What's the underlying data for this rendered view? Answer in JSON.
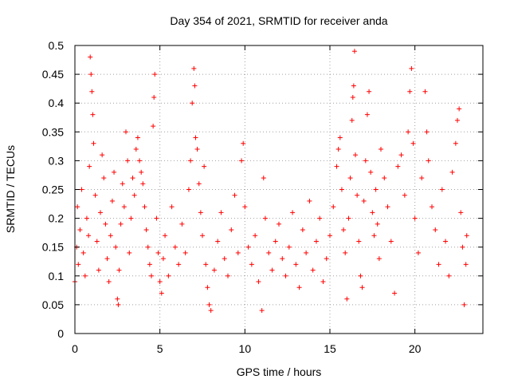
{
  "chart_data": {
    "type": "scatter",
    "title": "Day 354 of 2021, SRMTID for receiver anda",
    "xlabel": "GPS time / hours",
    "ylabel": "SRMTID / TECUs",
    "xlim": [
      0,
      24
    ],
    "ylim": [
      0,
      0.5
    ],
    "x_ticks": [
      0,
      5,
      10,
      15,
      20
    ],
    "y_ticks": [
      0,
      0.05,
      0.1,
      0.15,
      0.2,
      0.25,
      0.3,
      0.35,
      0.4,
      0.45,
      0.5
    ],
    "x_tick_labels": [
      "0",
      "5",
      "10",
      "15",
      "20"
    ],
    "y_tick_labels": [
      "0",
      "0.05",
      "0.1",
      "0.15",
      "0.2",
      "0.25",
      "0.3",
      "0.35",
      "0.4",
      "0.45",
      "0.5"
    ],
    "grid": true,
    "marker": "+",
    "color": "#ff0000",
    "series": [
      {
        "name": "SRMTID",
        "points": [
          [
            0.0,
            0.09
          ],
          [
            0.1,
            0.15
          ],
          [
            0.15,
            0.22
          ],
          [
            0.2,
            0.12
          ],
          [
            0.3,
            0.18
          ],
          [
            0.4,
            0.25
          ],
          [
            0.5,
            0.14
          ],
          [
            0.6,
            0.1
          ],
          [
            0.7,
            0.2
          ],
          [
            0.8,
            0.17
          ],
          [
            0.85,
            0.29
          ],
          [
            0.9,
            0.48
          ],
          [
            0.95,
            0.45
          ],
          [
            1.0,
            0.42
          ],
          [
            1.05,
            0.38
          ],
          [
            1.1,
            0.33
          ],
          [
            1.2,
            0.24
          ],
          [
            1.3,
            0.16
          ],
          [
            1.4,
            0.11
          ],
          [
            1.5,
            0.21
          ],
          [
            1.6,
            0.31
          ],
          [
            1.7,
            0.27
          ],
          [
            1.8,
            0.19
          ],
          [
            1.9,
            0.13
          ],
          [
            2.0,
            0.09
          ],
          [
            2.1,
            0.17
          ],
          [
            2.2,
            0.23
          ],
          [
            2.3,
            0.28
          ],
          [
            2.4,
            0.15
          ],
          [
            2.5,
            0.06
          ],
          [
            2.55,
            0.05
          ],
          [
            2.6,
            0.11
          ],
          [
            2.7,
            0.19
          ],
          [
            2.8,
            0.26
          ],
          [
            2.9,
            0.22
          ],
          [
            3.0,
            0.35
          ],
          [
            3.1,
            0.3
          ],
          [
            3.2,
            0.14
          ],
          [
            3.3,
            0.2
          ],
          [
            3.4,
            0.27
          ],
          [
            3.5,
            0.24
          ],
          [
            3.6,
            0.32
          ],
          [
            3.7,
            0.34
          ],
          [
            3.8,
            0.3
          ],
          [
            3.9,
            0.28
          ],
          [
            4.0,
            0.26
          ],
          [
            4.1,
            0.22
          ],
          [
            4.2,
            0.18
          ],
          [
            4.3,
            0.15
          ],
          [
            4.4,
            0.12
          ],
          [
            4.5,
            0.1
          ],
          [
            4.6,
            0.36
          ],
          [
            4.65,
            0.41
          ],
          [
            4.7,
            0.45
          ],
          [
            4.8,
            0.2
          ],
          [
            4.9,
            0.14
          ],
          [
            5.0,
            0.09
          ],
          [
            5.1,
            0.07
          ],
          [
            5.2,
            0.13
          ],
          [
            5.3,
            0.17
          ],
          [
            5.5,
            0.1
          ],
          [
            5.7,
            0.22
          ],
          [
            5.9,
            0.15
          ],
          [
            6.1,
            0.12
          ],
          [
            6.3,
            0.19
          ],
          [
            6.5,
            0.14
          ],
          [
            6.7,
            0.25
          ],
          [
            6.8,
            0.3
          ],
          [
            6.9,
            0.4
          ],
          [
            7.0,
            0.46
          ],
          [
            7.05,
            0.43
          ],
          [
            7.1,
            0.34
          ],
          [
            7.2,
            0.32
          ],
          [
            7.3,
            0.26
          ],
          [
            7.4,
            0.21
          ],
          [
            7.5,
            0.17
          ],
          [
            7.6,
            0.29
          ],
          [
            7.7,
            0.12
          ],
          [
            7.8,
            0.08
          ],
          [
            7.9,
            0.05
          ],
          [
            8.0,
            0.04
          ],
          [
            8.2,
            0.11
          ],
          [
            8.4,
            0.16
          ],
          [
            8.6,
            0.21
          ],
          [
            8.8,
            0.13
          ],
          [
            9.0,
            0.1
          ],
          [
            9.2,
            0.18
          ],
          [
            9.4,
            0.24
          ],
          [
            9.6,
            0.14
          ],
          [
            9.8,
            0.3
          ],
          [
            9.9,
            0.33
          ],
          [
            10.0,
            0.22
          ],
          [
            10.2,
            0.15
          ],
          [
            10.4,
            0.12
          ],
          [
            10.6,
            0.17
          ],
          [
            10.8,
            0.09
          ],
          [
            11.0,
            0.04
          ],
          [
            11.1,
            0.27
          ],
          [
            11.2,
            0.2
          ],
          [
            11.4,
            0.14
          ],
          [
            11.6,
            0.11
          ],
          [
            11.8,
            0.16
          ],
          [
            12.0,
            0.19
          ],
          [
            12.2,
            0.13
          ],
          [
            12.4,
            0.1
          ],
          [
            12.6,
            0.15
          ],
          [
            12.8,
            0.21
          ],
          [
            13.0,
            0.12
          ],
          [
            13.2,
            0.08
          ],
          [
            13.4,
            0.18
          ],
          [
            13.6,
            0.14
          ],
          [
            13.8,
            0.23
          ],
          [
            14.0,
            0.11
          ],
          [
            14.2,
            0.16
          ],
          [
            14.4,
            0.2
          ],
          [
            14.6,
            0.09
          ],
          [
            14.8,
            0.13
          ],
          [
            15.0,
            0.17
          ],
          [
            15.2,
            0.22
          ],
          [
            15.4,
            0.29
          ],
          [
            15.5,
            0.32
          ],
          [
            15.6,
            0.34
          ],
          [
            15.7,
            0.25
          ],
          [
            15.8,
            0.18
          ],
          [
            15.9,
            0.14
          ],
          [
            16.0,
            0.06
          ],
          [
            16.1,
            0.2
          ],
          [
            16.2,
            0.27
          ],
          [
            16.3,
            0.37
          ],
          [
            16.35,
            0.41
          ],
          [
            16.4,
            0.43
          ],
          [
            16.45,
            0.49
          ],
          [
            16.5,
            0.31
          ],
          [
            16.6,
            0.24
          ],
          [
            16.7,
            0.16
          ],
          [
            16.8,
            0.1
          ],
          [
            16.9,
            0.08
          ],
          [
            17.0,
            0.23
          ],
          [
            17.1,
            0.3
          ],
          [
            17.2,
            0.38
          ],
          [
            17.3,
            0.42
          ],
          [
            17.4,
            0.28
          ],
          [
            17.5,
            0.21
          ],
          [
            17.6,
            0.17
          ],
          [
            17.7,
            0.25
          ],
          [
            17.8,
            0.19
          ],
          [
            17.9,
            0.13
          ],
          [
            18.0,
            0.32
          ],
          [
            18.2,
            0.27
          ],
          [
            18.4,
            0.22
          ],
          [
            18.6,
            0.16
          ],
          [
            18.8,
            0.07
          ],
          [
            19.0,
            0.29
          ],
          [
            19.2,
            0.31
          ],
          [
            19.4,
            0.24
          ],
          [
            19.6,
            0.35
          ],
          [
            19.7,
            0.42
          ],
          [
            19.8,
            0.46
          ],
          [
            19.9,
            0.33
          ],
          [
            20.0,
            0.2
          ],
          [
            20.2,
            0.14
          ],
          [
            20.4,
            0.27
          ],
          [
            20.6,
            0.42
          ],
          [
            20.7,
            0.35
          ],
          [
            20.8,
            0.3
          ],
          [
            21.0,
            0.22
          ],
          [
            21.2,
            0.18
          ],
          [
            21.4,
            0.12
          ],
          [
            21.6,
            0.25
          ],
          [
            21.8,
            0.16
          ],
          [
            22.0,
            0.1
          ],
          [
            22.2,
            0.28
          ],
          [
            22.4,
            0.33
          ],
          [
            22.5,
            0.37
          ],
          [
            22.6,
            0.39
          ],
          [
            22.7,
            0.21
          ],
          [
            22.8,
            0.15
          ],
          [
            22.9,
            0.05
          ],
          [
            23.0,
            0.12
          ],
          [
            23.05,
            0.17
          ]
        ]
      }
    ]
  }
}
